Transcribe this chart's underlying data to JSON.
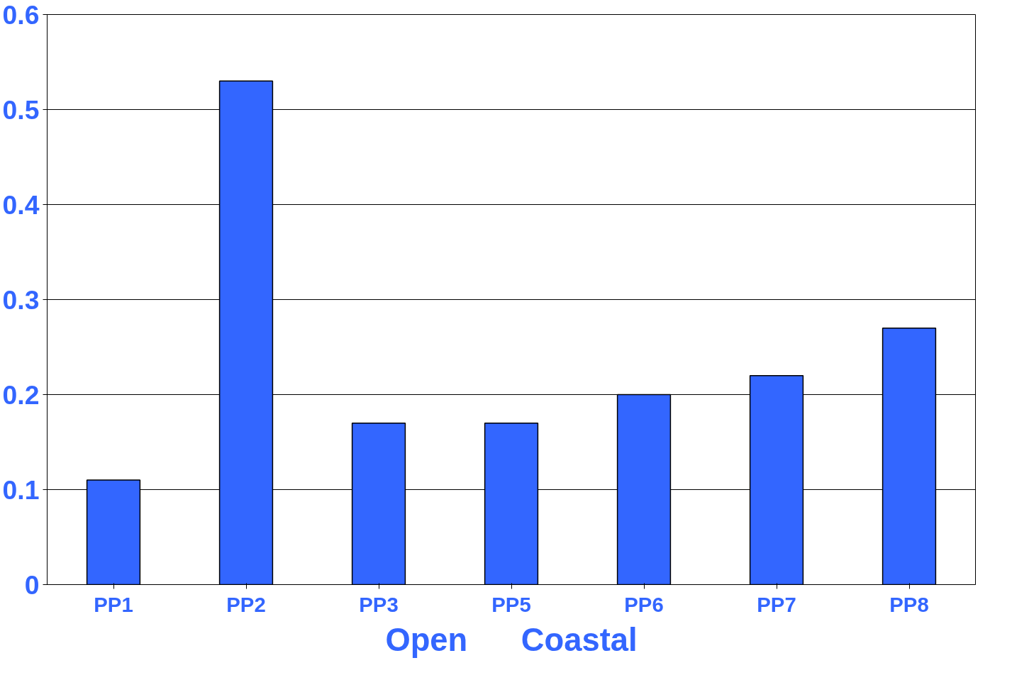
{
  "chart_data": {
    "type": "bar",
    "categories": [
      "PP1",
      "PP2",
      "PP3",
      "PP5",
      "PP6",
      "PP7",
      "PP8"
    ],
    "values": [
      0.11,
      0.53,
      0.17,
      0.17,
      0.2,
      0.22,
      0.27
    ],
    "color": "#3366ff",
    "xlabel": "Open      Coastal",
    "ylim": [
      0,
      0.6
    ],
    "yticks": [
      0,
      0.1,
      0.2,
      0.3,
      0.4,
      0.5,
      0.6
    ],
    "grid": "y"
  }
}
